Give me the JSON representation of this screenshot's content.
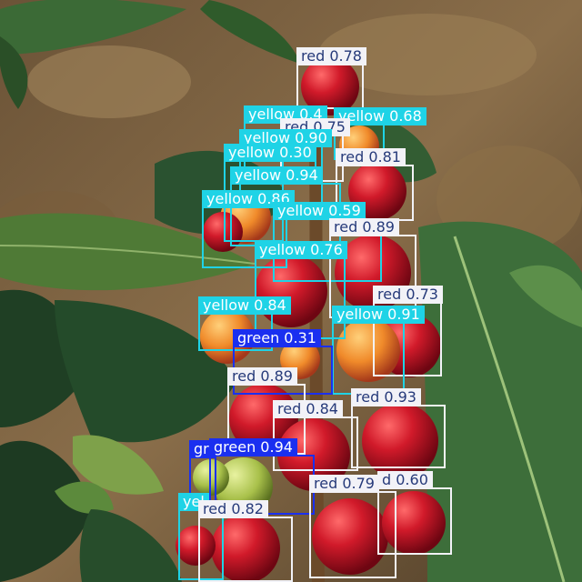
{
  "image": {
    "title": "Coffee cherries on a branch with detection overlays",
    "colors": {
      "red": "#f2f2f7",
      "yellow": "#1fd3e6",
      "green": "#1a2ff0",
      "label_text_dark": "#263a7a",
      "label_text_light": "#ffffff"
    }
  },
  "detections": [
    {
      "cls": "red",
      "label": "red 0.78"
    },
    {
      "cls": "yellow",
      "label": "yellow 0.68"
    },
    {
      "cls": "yellow",
      "label": "yellow 0.4"
    },
    {
      "cls": "red",
      "label": "red 0.75"
    },
    {
      "cls": "yellow",
      "label": "yellow 0.90"
    },
    {
      "cls": "yellow",
      "label": "yellow 0.30"
    },
    {
      "cls": "red",
      "label": "red 0.81"
    },
    {
      "cls": "yellow",
      "label": "yellow 0.94"
    },
    {
      "cls": "yellow",
      "label": "yellow 0.86"
    },
    {
      "cls": "yellow",
      "label": "yellow 0.59"
    },
    {
      "cls": "red",
      "label": "red 0.89"
    },
    {
      "cls": "yellow",
      "label": "yellow 0.76"
    },
    {
      "cls": "red",
      "label": "red 0.73"
    },
    {
      "cls": "yellow",
      "label": "yellow 0.84"
    },
    {
      "cls": "yellow",
      "label": "yellow 0.91"
    },
    {
      "cls": "green",
      "label": "green 0.31"
    },
    {
      "cls": "red",
      "label": "red 0.89"
    },
    {
      "cls": "red",
      "label": "red 0.93"
    },
    {
      "cls": "red",
      "label": "red 0.84"
    },
    {
      "cls": "green",
      "label": "green 0.94"
    },
    {
      "cls": "green",
      "label": "gr"
    },
    {
      "cls": "red",
      "label": "red 0.79"
    },
    {
      "cls": "red",
      "label": "d 0.60"
    },
    {
      "cls": "yellow",
      "label": "yel"
    },
    {
      "cls": "red",
      "label": "red 0.82"
    }
  ]
}
